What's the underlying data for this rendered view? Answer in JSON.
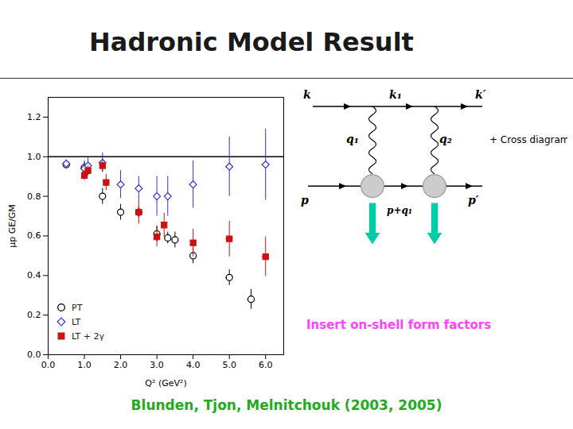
{
  "chart_data": {
    "type": "scatter",
    "title": "Hadronic Model Result",
    "xlabel": "Q² (GeV²)",
    "ylabel": "μp GE/GM",
    "xlim": [
      0,
      6.5
    ],
    "ylim": [
      0,
      1.3
    ],
    "xticks": [
      0,
      1,
      2,
      3,
      4,
      5,
      6
    ],
    "yticks": [
      {
        "value": 0,
        "label": "0.0"
      },
      0.2,
      0.4,
      0.6,
      0.8,
      {
        "value": 1.0,
        "label": "1.0"
      },
      1.2
    ],
    "grid": false,
    "legend": "lower left",
    "reference_line_y": 1.0,
    "series": [
      {
        "name": "PT",
        "color": "#000000",
        "marker": "open_circle",
        "x": [
          0.5,
          1.0,
          1.05,
          1.5,
          2.0,
          2.5,
          3.0,
          3.3,
          3.5,
          4.0,
          5.0,
          5.6
        ],
        "values": [
          0.96,
          0.945,
          0.925,
          0.8,
          0.72,
          0.72,
          0.61,
          0.59,
          0.58,
          0.5,
          0.39,
          0.28
        ],
        "yerr": [
          0.015,
          0.025,
          0.025,
          0.04,
          0.04,
          0.03,
          0.04,
          0.03,
          0.04,
          0.04,
          0.04,
          0.05
        ],
        "xerr": [
          0.02,
          0.03,
          0.03,
          0.05,
          0.05,
          0.05,
          0.05,
          0.05,
          0.05,
          0.07,
          0.1,
          0.1
        ]
      },
      {
        "name": "LT",
        "color": "#3333cc",
        "marker": "open_diamond",
        "x": [
          0.5,
          1.0,
          1.1,
          1.5,
          2.0,
          2.5,
          3.0,
          3.3,
          4.0,
          5.0,
          6.0
        ],
        "values": [
          0.965,
          0.94,
          0.955,
          0.97,
          0.86,
          0.84,
          0.8,
          0.8,
          0.86,
          0.95,
          0.96
        ],
        "yerr": [
          0.02,
          0.04,
          0.04,
          0.05,
          0.07,
          0.06,
          0.1,
          0.1,
          0.12,
          0.15,
          0.18
        ],
        "xerr": [
          0.02,
          0.03,
          0.03,
          0.05,
          0.05,
          0.05,
          0.05,
          0.05,
          0.07,
          0.1,
          0.1
        ]
      },
      {
        "name": "LT + 2γ",
        "color": "#cc1111",
        "marker": "square",
        "x": [
          1.0,
          1.1,
          1.5,
          1.6,
          2.5,
          3.0,
          3.2,
          4.0,
          5.0,
          6.0
        ],
        "values": [
          0.905,
          0.93,
          0.955,
          0.87,
          0.72,
          0.595,
          0.655,
          0.565,
          0.585,
          0.495
        ],
        "yerr": [
          0.025,
          0.025,
          0.03,
          0.04,
          0.06,
          0.05,
          0.06,
          0.07,
          0.09,
          0.1
        ],
        "xerr": [
          0.03,
          0.03,
          0.04,
          0.04,
          0.05,
          0.05,
          0.05,
          0.07,
          0.1,
          0.1
        ]
      }
    ],
    "diagram_labels": [
      "k",
      "k₁",
      "k′",
      "q₁",
      "q₂",
      "p",
      "p+q₁",
      "p′"
    ],
    "annotations": [
      {
        "text": "+ Cross diagram"
      },
      {
        "text": "Insert on-shell form factors",
        "color": "#ff44ff"
      },
      {
        "text": "Blunden, Tjon, Melnitchouk (2003, 2005)",
        "color": "#22aa22"
      }
    ]
  }
}
